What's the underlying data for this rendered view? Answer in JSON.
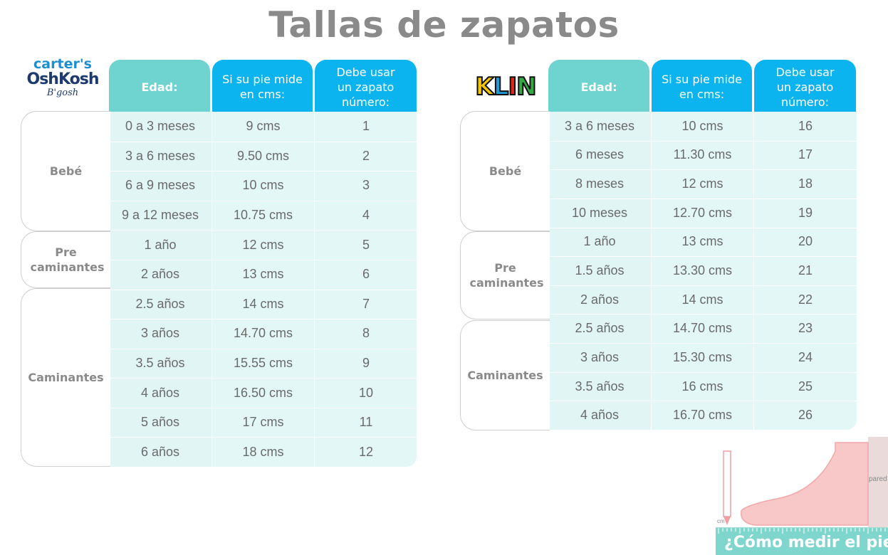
{
  "title": "Tallas de zapatos",
  "left": {
    "logo": {
      "line1": "carter's",
      "line2": "OshKosh",
      "line3": "B'gosh"
    },
    "headers": {
      "age": "Edad:",
      "measure": "Si su pie mide en cms:",
      "size": "Debe usar un zapato número:"
    },
    "groups": [
      {
        "label": "Bebé"
      },
      {
        "label": "Pre caminantes"
      },
      {
        "label": "Caminantes"
      }
    ],
    "rows": [
      {
        "age": "0 a 3 meses",
        "cm": "9 cms",
        "size": "1"
      },
      {
        "age": "3 a 6 meses",
        "cm": "9.50 cms",
        "size": "2"
      },
      {
        "age": "6 a 9 meses",
        "cm": "10 cms",
        "size": "3"
      },
      {
        "age": "9 a 12 meses",
        "cm": "10.75 cms",
        "size": "4"
      },
      {
        "age": "1 año",
        "cm": "12 cms",
        "size": "5"
      },
      {
        "age": "2 años",
        "cm": "13 cms",
        "size": "6"
      },
      {
        "age": "2.5 años",
        "cm": "14 cms",
        "size": "7"
      },
      {
        "age": "3 años",
        "cm": "14.70 cms",
        "size": "8"
      },
      {
        "age": "3.5 años",
        "cm": "15.55 cms",
        "size": "9"
      },
      {
        "age": "4 años",
        "cm": "16.50 cms",
        "size": "10"
      },
      {
        "age": "5 años",
        "cm": "17 cms",
        "size": "11"
      },
      {
        "age": "6 años",
        "cm": "18 cms",
        "size": "12"
      }
    ]
  },
  "right": {
    "logo": {
      "text": "KLIN"
    },
    "headers": {
      "age": "Edad:",
      "measure": "Si su pie mide en cms:",
      "size": "Debe usar un zapato número:"
    },
    "groups": [
      {
        "label": "Bebé"
      },
      {
        "label": "Pre caminantes"
      },
      {
        "label": "Caminantes"
      }
    ],
    "rows": [
      {
        "age": "3 a 6 meses",
        "cm": "10 cms",
        "size": "16"
      },
      {
        "age": "6 meses",
        "cm": "11.30 cms",
        "size": "17"
      },
      {
        "age": "8 meses",
        "cm": "12 cms",
        "size": "18"
      },
      {
        "age": "10 meses",
        "cm": "12.70 cms",
        "size": "19"
      },
      {
        "age": "1 año",
        "cm": "13 cms",
        "size": "20"
      },
      {
        "age": "1.5 años",
        "cm": "13.30 cms",
        "size": "21"
      },
      {
        "age": "2 años",
        "cm": "14 cms",
        "size": "22"
      },
      {
        "age": "2.5 años",
        "cm": "14.70 cms",
        "size": "23"
      },
      {
        "age": "3 años",
        "cm": "15.30 cms",
        "size": "24"
      },
      {
        "age": "3.5 años",
        "cm": "16 cms",
        "size": "25"
      },
      {
        "age": "4 años",
        "cm": "16.70 cms",
        "size": "26"
      }
    ]
  },
  "illustration": {
    "wall_label": "pared",
    "unit_label": "cm",
    "caption": "¿Cómo medir el pie?"
  },
  "colors": {
    "age_header": "#6fd3cf",
    "blue_header": "#0bb4ef",
    "table_body": "#e3f7f7",
    "title": "#8a8a8a",
    "klin_letters": [
      "#f7c600",
      "#1e9ad6",
      "#e2231a",
      "#35a845"
    ]
  }
}
